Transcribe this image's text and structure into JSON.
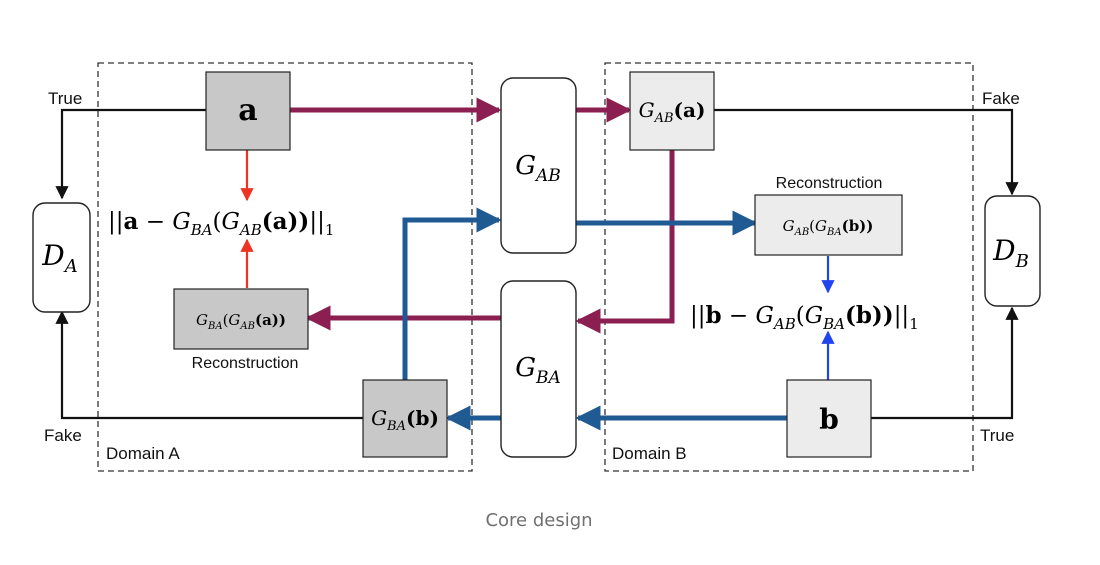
{
  "diagram": {
    "domain_a_label": "Domain A",
    "domain_b_label": "Domain B",
    "nodes": {
      "a": "a",
      "b": "b",
      "d_a": {
        "base": "D",
        "sub": "A"
      },
      "d_b": {
        "base": "D",
        "sub": "B"
      },
      "g_ab": {
        "base": "G",
        "sub": "AB"
      },
      "g_ba": {
        "base": "G",
        "sub": "BA"
      },
      "g_ab_a": {
        "g": "G",
        "sub": "AB",
        "arg": "(a)"
      },
      "g_ba_b": {
        "g": "G",
        "sub": "BA",
        "arg": "(b)"
      },
      "recon_a": {
        "g1": "G",
        "sub1": "BA",
        "mid": "(",
        "g2": "G",
        "sub2": "AB",
        "arg": "(a))"
      },
      "recon_b": {
        "g1": "G",
        "sub1": "AB",
        "mid": "(",
        "g2": "G",
        "sub2": "BA",
        "arg": "(b))"
      }
    },
    "labels": {
      "true_a": "True",
      "fake_a": "Fake",
      "true_b": "True",
      "fake_b": "Fake",
      "reconstruction_a": "Reconstruction",
      "reconstruction_b": "Reconstruction"
    },
    "loss_a": {
      "p1": "||",
      "v": "a",
      "minus": " − ",
      "g1": "G",
      "sub1": "BA",
      "mid": "(",
      "g2": "G",
      "sub2": "AB",
      "arg": "(a))",
      "end": "||",
      "norm": "1"
    },
    "loss_b": {
      "p1": "||",
      "v": "b",
      "minus": " − ",
      "g1": "G",
      "sub1": "AB",
      "mid": "(",
      "g2": "G",
      "sub2": "BA",
      "arg": "(b))",
      "end": "||",
      "norm": "1"
    },
    "colors": {
      "forward_a": "#8b1f52",
      "forward_b": "#1f5a93",
      "loss_a_arrow": "#ee3322",
      "loss_b_arrow": "#2244ee",
      "discriminator": "#111111",
      "dark_box": "#c8c8c8",
      "light_box": "#ececec"
    }
  },
  "caption": "Core design"
}
